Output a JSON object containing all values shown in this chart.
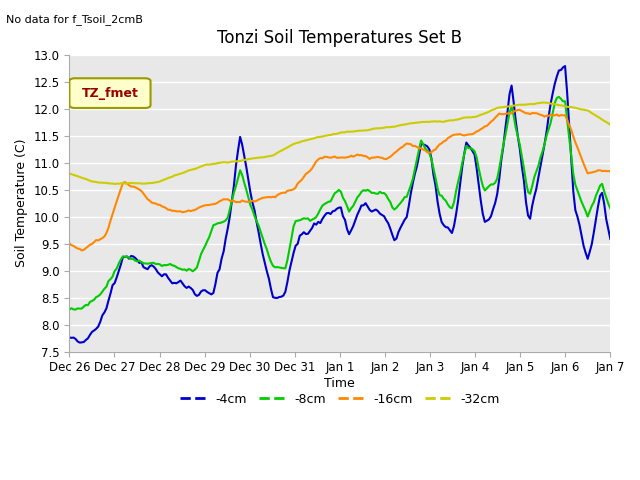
{
  "title": "Tonzi Soil Temperatures Set B",
  "xlabel": "Time",
  "ylabel": "Soil Temperature (C)",
  "no_data_text": "No data for f_Tsoil_2cmB",
  "legend_label": "TZ_fmet",
  "ylim": [
    7.5,
    13.0
  ],
  "yticks": [
    7.5,
    8.0,
    8.5,
    9.0,
    9.5,
    10.0,
    10.5,
    11.0,
    11.5,
    12.0,
    12.5,
    13.0
  ],
  "colors": {
    "4cm": "#0000cc",
    "8cm": "#00cc00",
    "16cm": "#ff8800",
    "32cm": "#cccc00"
  },
  "background_color": "#e8e8e8",
  "legend_box_color": "#ffffcc",
  "legend_text_color": "#990000",
  "x_tick_labels": [
    "Dec 26",
    "Dec 27",
    "Dec 28",
    "Dec 29",
    "Dec 30",
    "Dec 31",
    "Jan 1",
    "Jan 2",
    "Jan 3",
    "Jan 4",
    "Jan 5",
    "Jan 6",
    "Jan 7"
  ],
  "n_points": 264
}
